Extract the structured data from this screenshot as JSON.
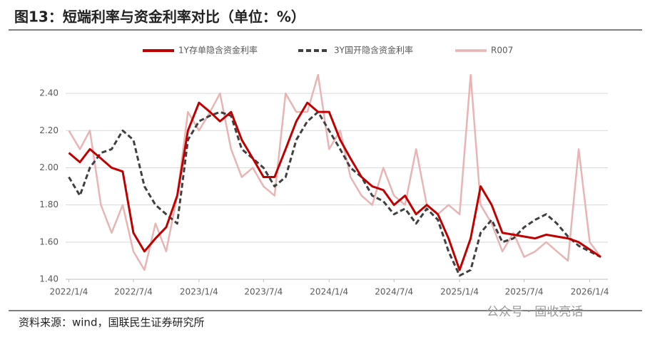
{
  "chart_data": {
    "type": "line",
    "title": "图13：短端利率与资金利率对比（单位：%）",
    "source": "资料来源：wind，国联民生证券研究所",
    "watermark": "公众号 · 固收亮话",
    "x": [
      "2022/1/4",
      "2022/2/4",
      "2022/3/4",
      "2022/4/4",
      "2022/5/4",
      "2022/6/4",
      "2022/7/4",
      "2022/8/4",
      "2022/9/4",
      "2022/10/4",
      "2022/11/4",
      "2022/12/4",
      "2023/1/4",
      "2023/2/4",
      "2023/3/4",
      "2023/4/4",
      "2023/5/4",
      "2023/6/4",
      "2023/7/4",
      "2023/8/4",
      "2023/9/4",
      "2023/10/4",
      "2023/11/4",
      "2023/12/4",
      "2024/1/4",
      "2024/2/4",
      "2024/3/4",
      "2024/4/4",
      "2024/5/4",
      "2024/6/4",
      "2024/7/4",
      "2024/8/4",
      "2024/9/4",
      "2024/10/4",
      "2024/11/4",
      "2024/12/4",
      "2025/1/4",
      "2025/2/4",
      "2025/3/4",
      "2025/4/4",
      "2025/5/4",
      "2025/6/4",
      "2025/7/4",
      "2025/8/4",
      "2025/9/4",
      "2025/10/4",
      "2025/11/4",
      "2025/12/4",
      "2026/1/4",
      "2026/2/4"
    ],
    "series": [
      {
        "name": "1Y存单隐含资金利率",
        "color": "#c00000",
        "style": "solid",
        "width": 3,
        "values": [
          2.08,
          2.03,
          2.1,
          2.05,
          2.0,
          1.98,
          1.65,
          1.55,
          1.62,
          1.68,
          1.85,
          2.2,
          2.35,
          2.3,
          2.25,
          2.3,
          2.15,
          2.05,
          1.95,
          1.95,
          2.1,
          2.25,
          2.35,
          2.3,
          2.3,
          2.15,
          2.05,
          1.95,
          1.9,
          1.88,
          1.8,
          1.85,
          1.75,
          1.8,
          1.75,
          1.62,
          1.45,
          1.62,
          1.9,
          1.8,
          1.65,
          1.64,
          1.63,
          1.62,
          1.64,
          1.63,
          1.62,
          1.6,
          1.56,
          1.52
        ]
      },
      {
        "name": "3Y国开隐含资金利率",
        "color": "#404040",
        "style": "dashed",
        "width": 3,
        "values": [
          1.95,
          1.85,
          2.0,
          2.08,
          2.1,
          2.2,
          2.15,
          1.9,
          1.8,
          1.75,
          1.7,
          2.15,
          2.25,
          2.28,
          2.3,
          2.28,
          2.1,
          2.05,
          2.0,
          1.9,
          1.95,
          2.15,
          2.25,
          2.3,
          2.2,
          2.1,
          2.0,
          1.95,
          1.85,
          1.82,
          1.75,
          1.78,
          1.7,
          1.78,
          1.72,
          1.55,
          1.42,
          1.45,
          1.65,
          1.72,
          1.6,
          1.62,
          1.68,
          1.72,
          1.75,
          1.7,
          1.63,
          1.58,
          1.55,
          1.52
        ]
      },
      {
        "name": "R007",
        "color": "#e8b4b4",
        "style": "solid",
        "width": 2.5,
        "values": [
          2.2,
          2.1,
          2.2,
          1.8,
          1.65,
          1.8,
          1.55,
          1.45,
          1.7,
          1.55,
          1.85,
          2.3,
          2.2,
          2.3,
          2.4,
          2.1,
          1.95,
          2.0,
          1.9,
          1.85,
          2.4,
          2.3,
          2.3,
          2.5,
          2.1,
          2.2,
          1.95,
          1.85,
          1.8,
          2.0,
          1.85,
          1.8,
          2.1,
          1.8,
          1.75,
          1.8,
          1.75,
          2.5,
          1.8,
          1.7,
          1.55,
          1.65,
          1.52,
          1.55,
          1.6,
          1.55,
          1.5,
          2.1,
          1.6,
          1.52
        ]
      }
    ],
    "xlim": [
      "2021/12/26",
      "2026/2/24"
    ],
    "xticks": [
      "2022/1/4",
      "2022/7/4",
      "2023/1/4",
      "2023/7/4",
      "2024/1/4",
      "2024/7/4",
      "2025/1/4",
      "2025/7/4",
      "2026/1/4"
    ],
    "ylim": [
      1.4,
      2.5
    ],
    "yticks": [
      {
        "value": 1.4,
        "label": "1.40"
      },
      {
        "value": 1.6,
        "label": "1.60"
      },
      {
        "value": 1.8,
        "label": "1.80"
      },
      {
        "value": 2.0,
        "label": "2.00"
      },
      {
        "value": 2.2,
        "label": "2.20"
      },
      {
        "value": 2.4,
        "label": "2.40"
      }
    ],
    "grid": true,
    "legend": "top"
  }
}
